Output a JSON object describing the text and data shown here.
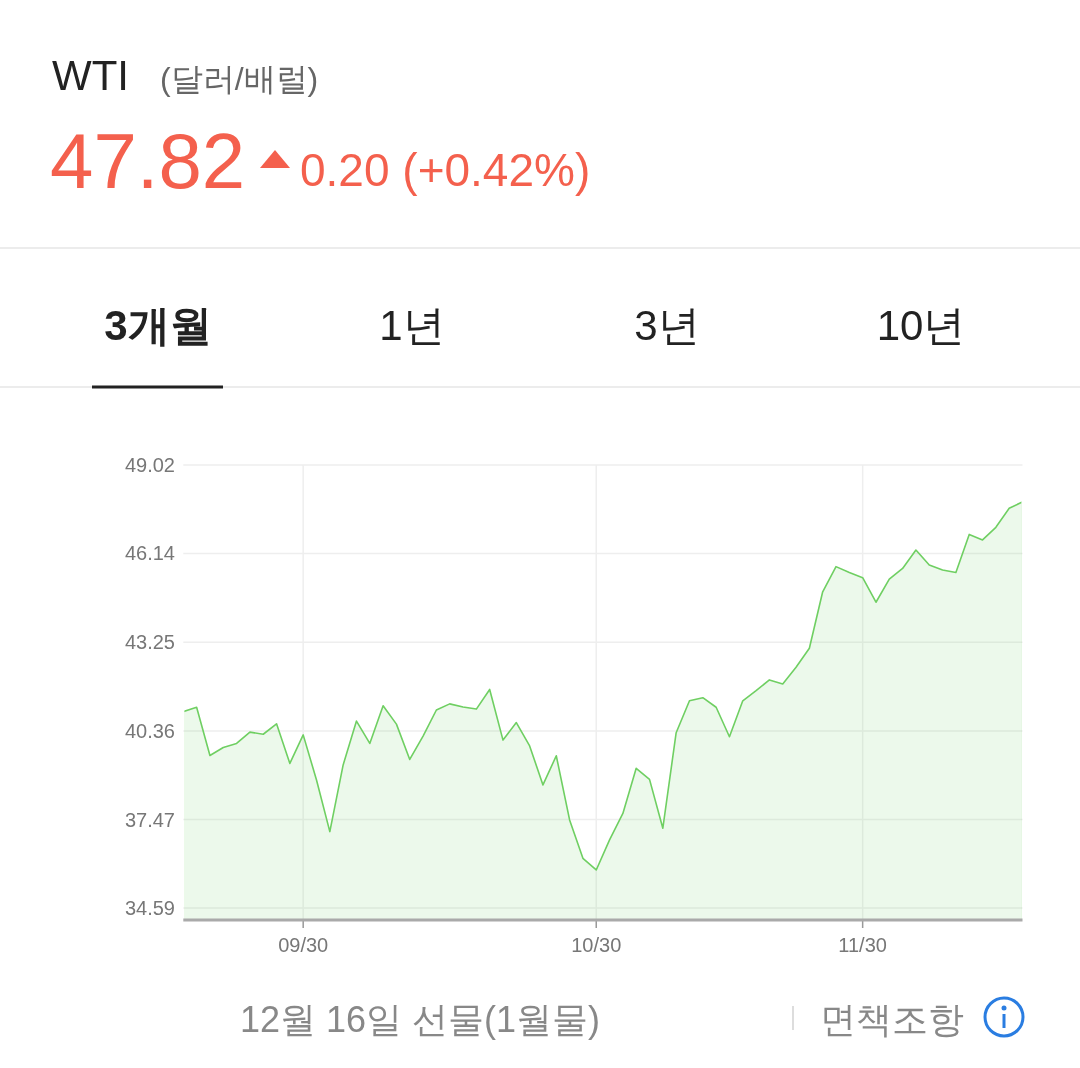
{
  "chart_data": {
    "type": "area",
    "title": "WTI",
    "subtitle": "(달러/배럴)",
    "categories": [
      null,
      null,
      null,
      null,
      null,
      null,
      null,
      null,
      null,
      "09/30",
      null,
      null,
      null,
      null,
      null,
      null,
      null,
      null,
      null,
      null,
      null,
      null,
      null,
      null,
      null,
      null,
      null,
      null,
      null,
      null,
      null,
      "10/30",
      null,
      null,
      null,
      null,
      null,
      null,
      null,
      null,
      null,
      null,
      null,
      null,
      null,
      null,
      null,
      null,
      null,
      null,
      null,
      "11/30",
      null,
      null,
      null,
      null,
      null,
      null,
      null,
      null,
      null,
      null,
      null,
      null
    ],
    "series": [
      {
        "color": "#6fcf62",
        "values": [
          40.99,
          41.13,
          39.56,
          39.82,
          39.95,
          40.32,
          40.25,
          40.59,
          39.3,
          40.23,
          38.76,
          37.08,
          39.25,
          40.68,
          39.95,
          41.18,
          40.58,
          39.43,
          40.19,
          41.04,
          41.24,
          41.14,
          41.07,
          41.71,
          40.06,
          40.63,
          39.87,
          38.6,
          39.55,
          37.46,
          36.21,
          35.83,
          36.81,
          37.67,
          39.14,
          38.78,
          37.19,
          40.3,
          41.34,
          41.44,
          41.13,
          40.17,
          41.34,
          41.67,
          42.02,
          41.89,
          42.43,
          43.05,
          44.89,
          45.71,
          45.52,
          45.35,
          44.55,
          45.3,
          45.65,
          46.25,
          45.76,
          45.6,
          45.52,
          46.76,
          46.58,
          46.99,
          47.61,
          47.82
        ]
      }
    ],
    "ylim": [
      34.2,
      49.02
    ],
    "yticks": [
      34.59,
      37.47,
      40.36,
      43.25,
      46.14,
      49.02
    ],
    "grid": true,
    "annotations": [
      "47.82",
      "0.20 (+0.42%)",
      "3개월",
      "1년",
      "3년",
      "10년",
      "12월 16일 선물(1월물)",
      "면책조항"
    ]
  }
}
